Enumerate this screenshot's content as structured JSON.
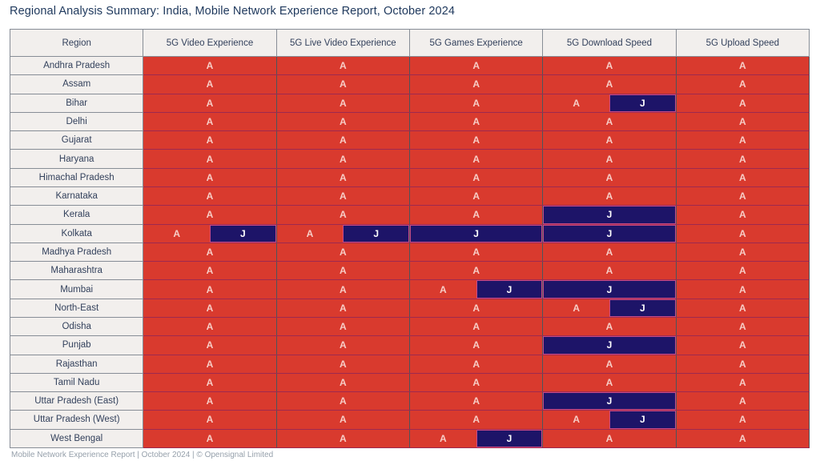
{
  "title": "Regional Analysis Summary: India, Mobile Network Experience Report, October 2024",
  "footer": "Mobile Network Experience Report | October 2024 | © Opensignal Limited",
  "colors": {
    "operator_a_red": "#d93a2e",
    "operator_j_navy": "#1d1468",
    "a_label_color": "#f7cdc6",
    "j_label_color": "#ffffff",
    "header_bg": "#f2efed",
    "header_text": "#33415c",
    "title_color": "#203a5e",
    "footer_color": "#96a0ab",
    "j_box_border": "#c84a86"
  },
  "chart_data": {
    "type": "table",
    "title": "Regional Analysis Summary: India, Mobile Network Experience Report, October 2024",
    "columns": [
      "Region",
      "5G Video Experience",
      "5G Live Video Experience",
      "5G Games Experience",
      "5G Download Speed",
      "5G Upload Speed"
    ],
    "cell_value_labels": {
      "A": "A",
      "J": "J"
    },
    "rows": [
      {
        "region": "Andhra Pradesh",
        "cells": [
          "A",
          "A",
          "A",
          "A",
          "A"
        ]
      },
      {
        "region": "Assam",
        "cells": [
          "A",
          "A",
          "A",
          "A",
          "A"
        ]
      },
      {
        "region": "Bihar",
        "cells": [
          "A",
          "A",
          "A",
          "A+J",
          "A"
        ]
      },
      {
        "region": "Delhi",
        "cells": [
          "A",
          "A",
          "A",
          "A",
          "A"
        ]
      },
      {
        "region": "Gujarat",
        "cells": [
          "A",
          "A",
          "A",
          "A",
          "A"
        ]
      },
      {
        "region": "Haryana",
        "cells": [
          "A",
          "A",
          "A",
          "A",
          "A"
        ]
      },
      {
        "region": "Himachal Pradesh",
        "cells": [
          "A",
          "A",
          "A",
          "A",
          "A"
        ]
      },
      {
        "region": "Karnataka",
        "cells": [
          "A",
          "A",
          "A",
          "A",
          "A"
        ]
      },
      {
        "region": "Kerala",
        "cells": [
          "A",
          "A",
          "A",
          "J",
          "A"
        ]
      },
      {
        "region": "Kolkata",
        "cells": [
          "A+J",
          "A+J",
          "J",
          "J",
          "A"
        ]
      },
      {
        "region": "Madhya Pradesh",
        "cells": [
          "A",
          "A",
          "A",
          "A",
          "A"
        ]
      },
      {
        "region": "Maharashtra",
        "cells": [
          "A",
          "A",
          "A",
          "A",
          "A"
        ]
      },
      {
        "region": "Mumbai",
        "cells": [
          "A",
          "A",
          "A+J",
          "J",
          "A"
        ]
      },
      {
        "region": "North-East",
        "cells": [
          "A",
          "A",
          "A",
          "A+J",
          "A"
        ]
      },
      {
        "region": "Odisha",
        "cells": [
          "A",
          "A",
          "A",
          "A",
          "A"
        ]
      },
      {
        "region": "Punjab",
        "cells": [
          "A",
          "A",
          "A",
          "J",
          "A"
        ]
      },
      {
        "region": "Rajasthan",
        "cells": [
          "A",
          "A",
          "A",
          "A",
          "A"
        ]
      },
      {
        "region": "Tamil Nadu",
        "cells": [
          "A",
          "A",
          "A",
          "A",
          "A"
        ]
      },
      {
        "region": "Uttar Pradesh (East)",
        "cells": [
          "A",
          "A",
          "A",
          "J",
          "A"
        ]
      },
      {
        "region": "Uttar Pradesh (West)",
        "cells": [
          "A",
          "A",
          "A",
          "A+J",
          "A"
        ]
      },
      {
        "region": "West Bengal",
        "cells": [
          "A",
          "A",
          "A+J",
          "A",
          "A"
        ]
      }
    ]
  }
}
